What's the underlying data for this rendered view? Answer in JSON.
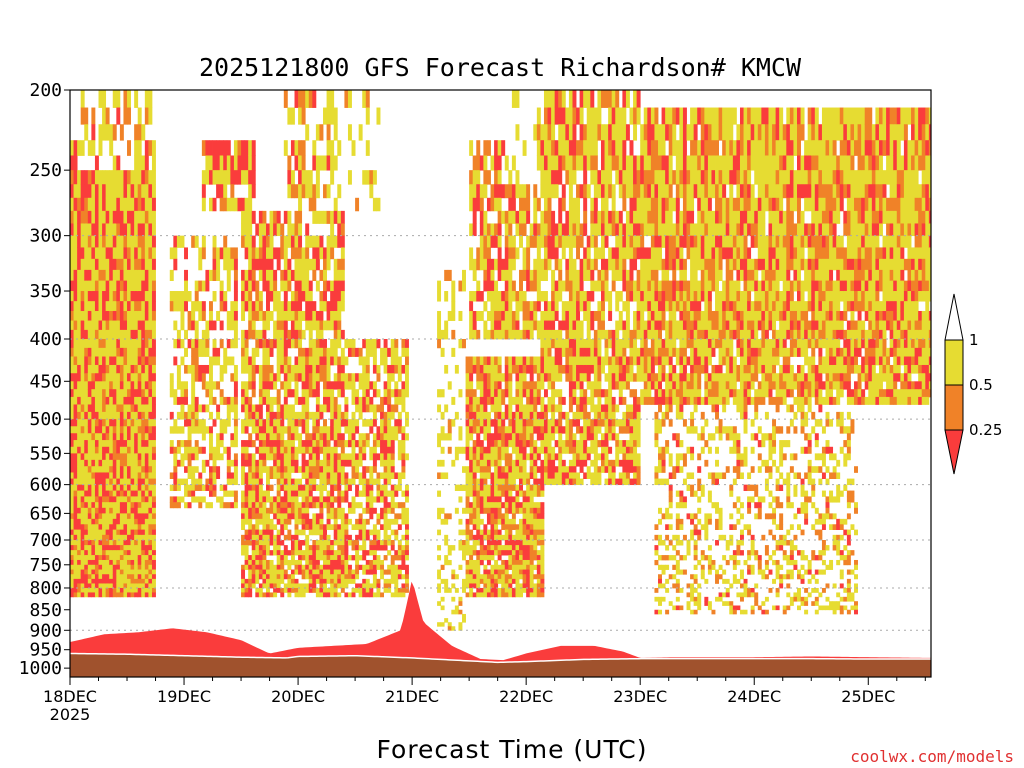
{
  "chart_data": {
    "type": "heatmap",
    "title": "2025121800 GFS Forecast Richardson# KMCW",
    "xlabel": "Forecast Time (UTC)",
    "ylabel": "",
    "credit": "coolwx.com/models",
    "x_axis": {
      "range_days": [
        0,
        7.55
      ],
      "ticks": [
        {
          "label": "18DEC",
          "sublabel": "2025",
          "day": 0
        },
        {
          "label": "19DEC",
          "day": 1
        },
        {
          "label": "20DEC",
          "day": 2
        },
        {
          "label": "21DEC",
          "day": 3
        },
        {
          "label": "22DEC",
          "day": 4
        },
        {
          "label": "23DEC",
          "day": 5
        },
        {
          "label": "24DEC",
          "day": 6
        },
        {
          "label": "25DEC",
          "day": 7
        }
      ]
    },
    "y_axis": {
      "unit_levels": [
        200,
        250,
        300,
        350,
        400,
        450,
        500,
        550,
        600,
        650,
        700,
        750,
        800,
        850,
        900,
        950,
        1000
      ],
      "range": [
        200,
        1025
      ],
      "grid_levels": [
        300,
        400,
        500,
        600,
        700,
        800,
        900,
        1000
      ],
      "grid": true
    },
    "colorbar": {
      "labels": [
        "1",
        "0.5",
        "0.25"
      ],
      "bands": [
        {
          "range": "> 1",
          "color": "#ffffff"
        },
        {
          "range": "0.5 - 1",
          "color": "#e6dc32"
        },
        {
          "range": "0.25 - 0.5",
          "color": "#f08228"
        },
        {
          "range": "< 0.25",
          "color": "#fa3c3c"
        }
      ]
    },
    "colors": {
      "ground": "#a0522d",
      "low": "#fa3c3c",
      "mid": "#f08228",
      "high": "#e6dc32",
      "grid": "#aaaaaa"
    },
    "surface_pressure": {
      "x": [
        0,
        0.5,
        1,
        1.5,
        1.9,
        2,
        2.5,
        3,
        3.5,
        3.75,
        4,
        4.5,
        5,
        5.5,
        6,
        6.5,
        7,
        7.55
      ],
      "y": [
        960,
        962,
        966,
        970,
        972,
        968,
        966,
        972,
        980,
        984,
        982,
        976,
        974,
        974,
        974,
        974,
        975,
        975
      ]
    },
    "boundary_layer_top": {
      "x": [
        0,
        0.3,
        0.6,
        0.9,
        1.2,
        1.5,
        1.75,
        2,
        2.3,
        2.6,
        2.9,
        3,
        3.1,
        3.35,
        3.6,
        3.8,
        4,
        4.3,
        4.6,
        4.85,
        5,
        5.3,
        6,
        6.5,
        7,
        7.55
      ],
      "y": [
        930,
        910,
        905,
        895,
        905,
        925,
        960,
        945,
        940,
        935,
        900,
        780,
        880,
        940,
        975,
        978,
        960,
        940,
        940,
        955,
        972,
        970,
        970,
        968,
        970,
        972
      ]
    },
    "regions": [
      {
        "d0": 0.0,
        "d1": 0.75,
        "p0": 230,
        "p1": 820,
        "hi": 0.55,
        "md": 0.15,
        "lo": 0.3
      },
      {
        "d0": 0.05,
        "d1": 0.7,
        "p0": 200,
        "p1": 250,
        "hi": 0.3,
        "md": 0.1,
        "lo": 0.05
      },
      {
        "d0": 0.85,
        "d1": 1.45,
        "p0": 300,
        "p1": 640,
        "hi": 0.35,
        "md": 0.1,
        "lo": 0.12
      },
      {
        "d0": 1.15,
        "d1": 1.6,
        "p0": 230,
        "p1": 280,
        "hi": 0.35,
        "md": 0.1,
        "lo": 0.35
      },
      {
        "d0": 1.5,
        "d1": 2.4,
        "p0": 280,
        "p1": 820,
        "hi": 0.4,
        "md": 0.15,
        "lo": 0.28
      },
      {
        "d0": 1.85,
        "d1": 2.3,
        "p0": 200,
        "p1": 300,
        "hi": 0.3,
        "md": 0.15,
        "lo": 0.05
      },
      {
        "d0": 2.3,
        "d1": 2.7,
        "p0": 200,
        "p1": 280,
        "hi": 0.2,
        "md": 0.05,
        "lo": 0.0
      },
      {
        "d0": 2.4,
        "d1": 2.95,
        "p0": 400,
        "p1": 820,
        "hi": 0.4,
        "md": 0.12,
        "lo": 0.2
      },
      {
        "d0": 3.2,
        "d1": 3.45,
        "p0": 330,
        "p1": 900,
        "hi": 0.25,
        "md": 0.05,
        "lo": 0.0
      },
      {
        "d0": 3.45,
        "d1": 4.15,
        "p0": 420,
        "p1": 820,
        "hi": 0.45,
        "md": 0.2,
        "lo": 0.25
      },
      {
        "d0": 3.5,
        "d1": 4.2,
        "p0": 230,
        "p1": 400,
        "hi": 0.4,
        "md": 0.2,
        "lo": 0.2
      },
      {
        "d0": 3.8,
        "d1": 4.3,
        "p0": 200,
        "p1": 260,
        "hi": 0.2,
        "md": 0.05,
        "lo": 0.0
      },
      {
        "d0": 4.1,
        "d1": 5.0,
        "p0": 200,
        "p1": 600,
        "hi": 0.45,
        "md": 0.15,
        "lo": 0.2
      },
      {
        "d0": 5.0,
        "d1": 7.55,
        "p0": 210,
        "p1": 480,
        "hi": 0.5,
        "md": 0.25,
        "lo": 0.18
      },
      {
        "d0": 5.1,
        "d1": 6.9,
        "p0": 480,
        "p1": 860,
        "hi": 0.22,
        "md": 0.12,
        "lo": 0.04
      }
    ]
  }
}
